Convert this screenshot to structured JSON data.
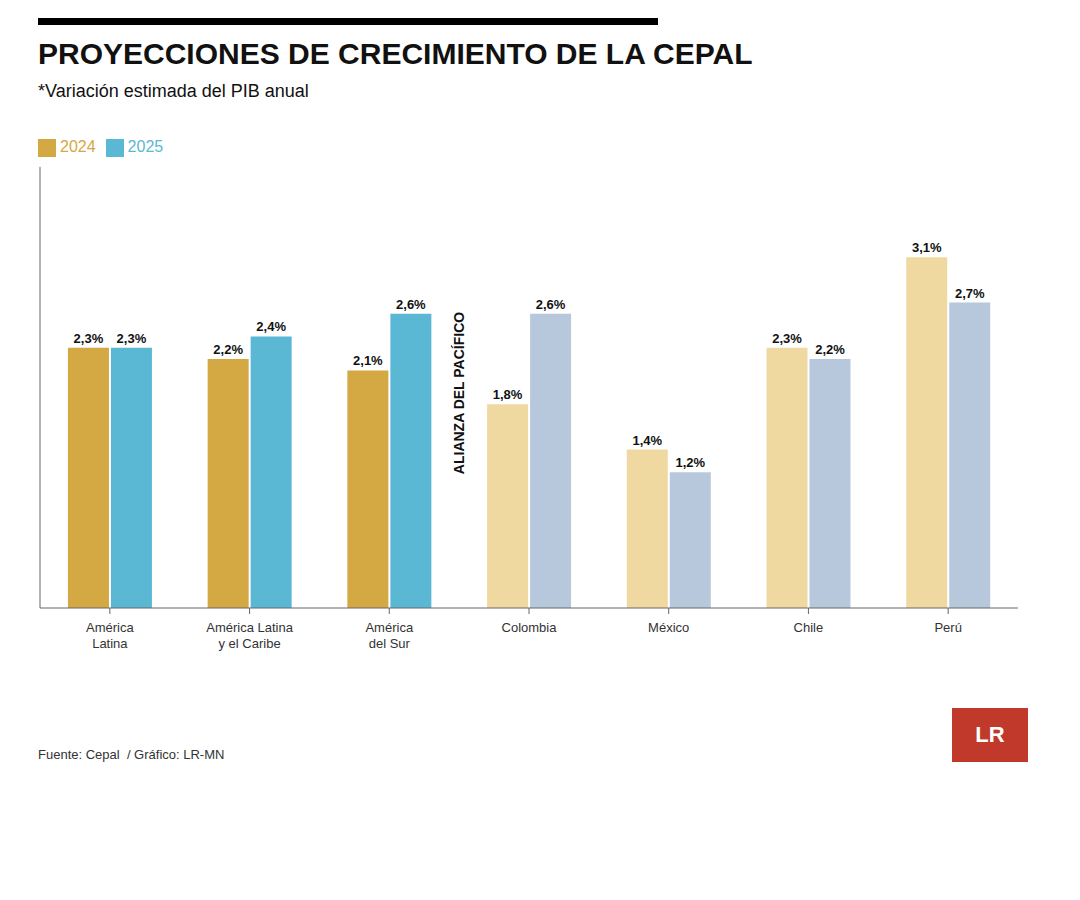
{
  "chart_data": {
    "type": "bar",
    "title": "PROYECCIONES DE CRECIMIENTO DE LA CEPAL",
    "subtitle": "*Variación estimada del PIB anual",
    "source": "Fuente: Cepal  / Gráfico: LR-MN",
    "annotations": [
      "ALIANZA DEL PACÍFICO",
      "LR"
    ],
    "categories": [
      "América\nLatina",
      "América Latina\ny el Caribe",
      "América\ndel Sur",
      "Colombia",
      "México",
      "Chile",
      "Perú"
    ],
    "series": [
      {
        "name": "2024",
        "color": "#D4A843",
        "colors": [
          "#D4A843",
          "#D4A843",
          "#D4A843",
          "#F0D9A0",
          "#F0D9A0",
          "#F0D9A0",
          "#F0D9A0"
        ],
        "values": [
          2.3,
          2.2,
          2.1,
          1.8,
          1.4,
          2.3,
          3.1
        ],
        "value_labels": [
          "2,3%",
          "2,2%",
          "2,1%",
          "1,8%",
          "1,4%",
          "2,3%",
          "3,1%"
        ]
      },
      {
        "name": "2025",
        "color": "#5BB8D4",
        "colors": [
          "#5BB8D4",
          "#5BB8D4",
          "#5BB8D4",
          "#B8C8DC",
          "#B8C8DC",
          "#B8C8DC",
          "#B8C8DC"
        ],
        "values": [
          2.3,
          2.4,
          2.6,
          2.6,
          1.2,
          2.2,
          2.7
        ],
        "value_labels": [
          "2,3%",
          "2,4%",
          "2,6%",
          "2,6%",
          "1,2%",
          "2,2%",
          "2,7%"
        ]
      }
    ],
    "ylim": [
      0,
      3.9
    ],
    "grid": false,
    "legend": "upper left",
    "data_labels": true,
    "tick_labels": "x"
  }
}
